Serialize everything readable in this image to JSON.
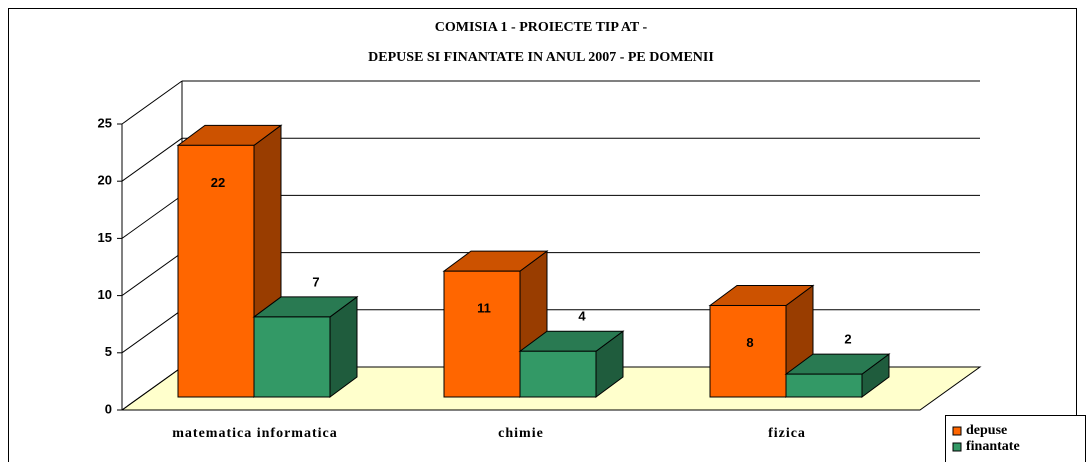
{
  "chart_data": {
    "type": "bar3d",
    "title": [
      "COMISIA 1 - PROIECTE TIP AT -",
      "DEPUSE SI FINANTATE IN ANUL 2007 - PE DOMENII"
    ],
    "categories": [
      "matematica informatica",
      "chimie",
      "fizica"
    ],
    "series": [
      {
        "name": "depuse",
        "color": "#ff6600",
        "values": [
          22,
          11,
          8
        ]
      },
      {
        "name": "finantate",
        "color": "#339966",
        "values": [
          7,
          4,
          2
        ]
      }
    ],
    "ylim": [
      0,
      25
    ],
    "yticks": [
      0,
      5,
      10,
      15,
      20,
      25
    ],
    "grid": true,
    "legend": "bottom-right"
  }
}
